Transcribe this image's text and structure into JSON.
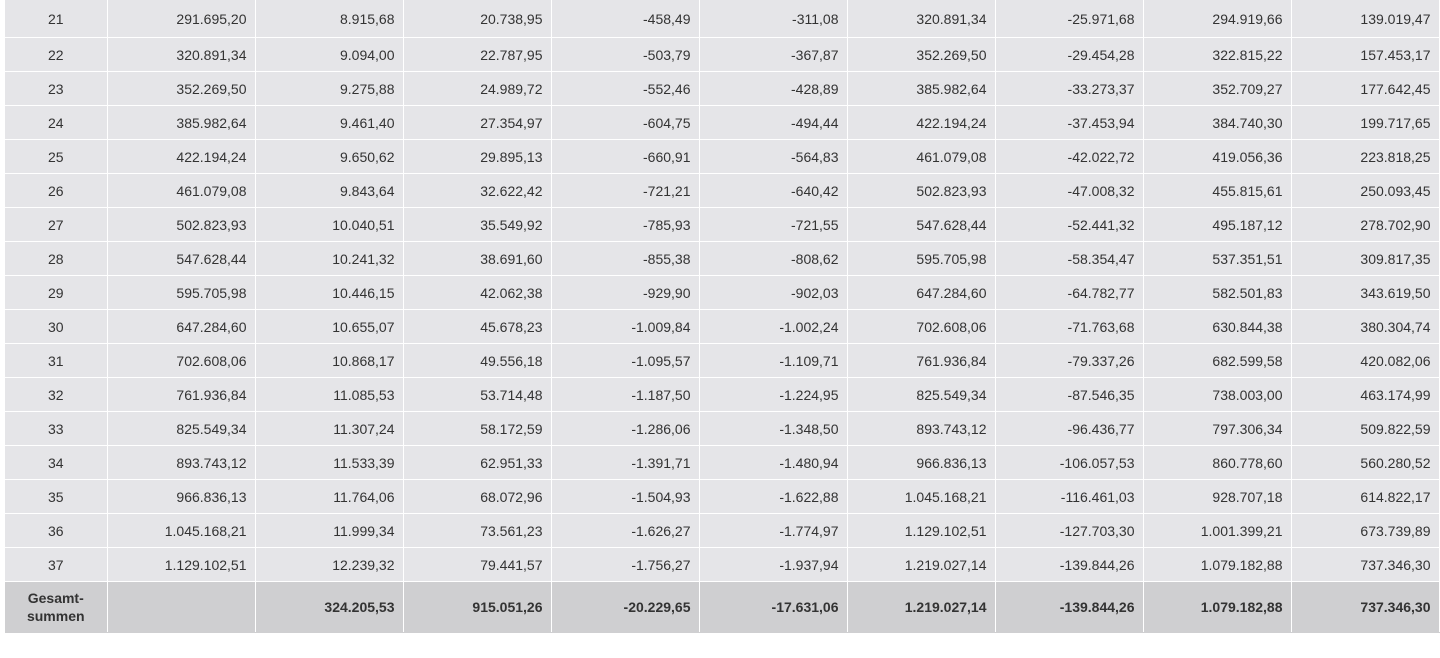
{
  "table": {
    "rows": [
      {
        "year": "21",
        "values": [
          "291.695,20",
          "8.915,68",
          "20.738,95",
          "-458,49",
          "-311,08",
          "320.891,34",
          "-25.971,68",
          "294.919,66",
          "139.019,47"
        ]
      },
      {
        "year": "22",
        "values": [
          "320.891,34",
          "9.094,00",
          "22.787,95",
          "-503,79",
          "-367,87",
          "352.269,50",
          "-29.454,28",
          "322.815,22",
          "157.453,17"
        ]
      },
      {
        "year": "23",
        "values": [
          "352.269,50",
          "9.275,88",
          "24.989,72",
          "-552,46",
          "-428,89",
          "385.982,64",
          "-33.273,37",
          "352.709,27",
          "177.642,45"
        ]
      },
      {
        "year": "24",
        "values": [
          "385.982,64",
          "9.461,40",
          "27.354,97",
          "-604,75",
          "-494,44",
          "422.194,24",
          "-37.453,94",
          "384.740,30",
          "199.717,65"
        ]
      },
      {
        "year": "25",
        "values": [
          "422.194,24",
          "9.650,62",
          "29.895,13",
          "-660,91",
          "-564,83",
          "461.079,08",
          "-42.022,72",
          "419.056,36",
          "223.818,25"
        ]
      },
      {
        "year": "26",
        "values": [
          "461.079,08",
          "9.843,64",
          "32.622,42",
          "-721,21",
          "-640,42",
          "502.823,93",
          "-47.008,32",
          "455.815,61",
          "250.093,45"
        ]
      },
      {
        "year": "27",
        "values": [
          "502.823,93",
          "10.040,51",
          "35.549,92",
          "-785,93",
          "-721,55",
          "547.628,44",
          "-52.441,32",
          "495.187,12",
          "278.702,90"
        ]
      },
      {
        "year": "28",
        "values": [
          "547.628,44",
          "10.241,32",
          "38.691,60",
          "-855,38",
          "-808,62",
          "595.705,98",
          "-58.354,47",
          "537.351,51",
          "309.817,35"
        ]
      },
      {
        "year": "29",
        "values": [
          "595.705,98",
          "10.446,15",
          "42.062,38",
          "-929,90",
          "-902,03",
          "647.284,60",
          "-64.782,77",
          "582.501,83",
          "343.619,50"
        ]
      },
      {
        "year": "30",
        "values": [
          "647.284,60",
          "10.655,07",
          "45.678,23",
          "-1.009,84",
          "-1.002,24",
          "702.608,06",
          "-71.763,68",
          "630.844,38",
          "380.304,74"
        ]
      },
      {
        "year": "31",
        "values": [
          "702.608,06",
          "10.868,17",
          "49.556,18",
          "-1.095,57",
          "-1.109,71",
          "761.936,84",
          "-79.337,26",
          "682.599,58",
          "420.082,06"
        ]
      },
      {
        "year": "32",
        "values": [
          "761.936,84",
          "11.085,53",
          "53.714,48",
          "-1.187,50",
          "-1.224,95",
          "825.549,34",
          "-87.546,35",
          "738.003,00",
          "463.174,99"
        ]
      },
      {
        "year": "33",
        "values": [
          "825.549,34",
          "11.307,24",
          "58.172,59",
          "-1.286,06",
          "-1.348,50",
          "893.743,12",
          "-96.436,77",
          "797.306,34",
          "509.822,59"
        ]
      },
      {
        "year": "34",
        "values": [
          "893.743,12",
          "11.533,39",
          "62.951,33",
          "-1.391,71",
          "-1.480,94",
          "966.836,13",
          "-106.057,53",
          "860.778,60",
          "560.280,52"
        ]
      },
      {
        "year": "35",
        "values": [
          "966.836,13",
          "11.764,06",
          "68.072,96",
          "-1.504,93",
          "-1.622,88",
          "1.045.168,21",
          "-116.461,03",
          "928.707,18",
          "614.822,17"
        ]
      },
      {
        "year": "36",
        "values": [
          "1.045.168,21",
          "11.999,34",
          "73.561,23",
          "-1.626,27",
          "-1.774,97",
          "1.129.102,51",
          "-127.703,30",
          "1.001.399,21",
          "673.739,89"
        ]
      },
      {
        "year": "37",
        "values": [
          "1.129.102,51",
          "12.239,32",
          "79.441,57",
          "-1.756,27",
          "-1.937,94",
          "1.219.027,14",
          "-139.844,26",
          "1.079.182,88",
          "737.346,30"
        ]
      }
    ],
    "totals": {
      "label_line1": "Gesamt-",
      "label_line2": "summen",
      "values": [
        "",
        "324.205,53",
        "915.051,26",
        "-20.229,65",
        "-17.631,06",
        "1.219.027,14",
        "-139.844,26",
        "1.079.182,88",
        "737.346,30"
      ]
    }
  }
}
